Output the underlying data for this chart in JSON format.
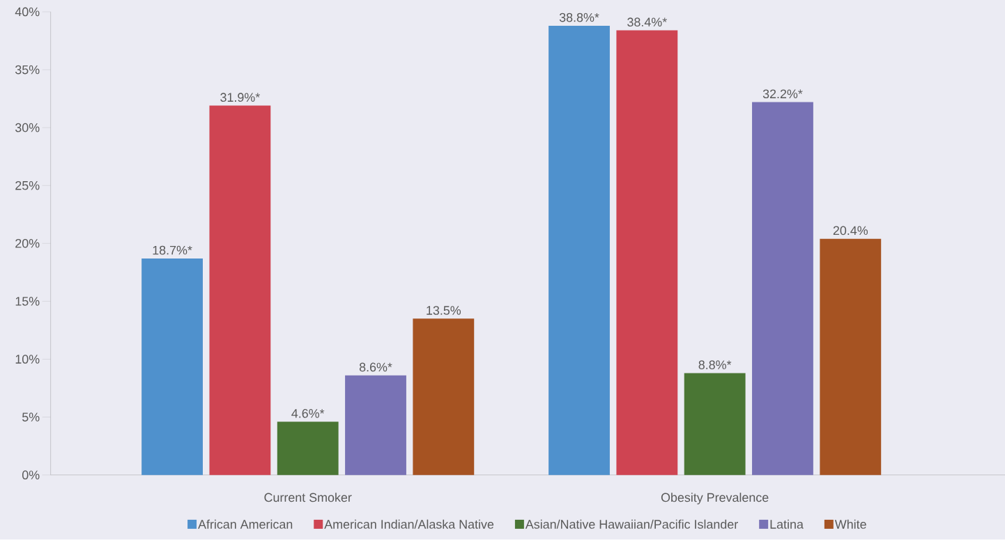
{
  "chart_data": {
    "type": "bar",
    "categories": [
      "Current Smoker",
      "Obesity Prevalence"
    ],
    "series": [
      {
        "name": "African American",
        "color": "#4f91cd",
        "values": [
          18.7,
          38.8
        ],
        "value_labels": [
          "18.7%*",
          "38.8%*"
        ]
      },
      {
        "name": "American Indian/Alaska Native",
        "color": "#cf4452",
        "values": [
          31.9,
          38.4
        ],
        "value_labels": [
          "31.9%*",
          "38.4%*"
        ]
      },
      {
        "name": "Asian/Native Hawaiian/Pacific Islander",
        "color": "#4a7634",
        "values": [
          4.6,
          8.8
        ],
        "value_labels": [
          "4.6%*",
          "8.8%*"
        ]
      },
      {
        "name": "Latina",
        "color": "#7872b5",
        "values": [
          8.6,
          32.2
        ],
        "value_labels": [
          "8.6%*",
          "32.2%*"
        ]
      },
      {
        "name": "White",
        "color": "#a65322",
        "values": [
          13.5,
          20.4
        ],
        "value_labels": [
          "13.5%",
          "20.4%"
        ]
      }
    ],
    "ylim": [
      0,
      40
    ],
    "yticks": [
      {
        "value": 0,
        "label": "0%"
      },
      {
        "value": 5,
        "label": "5%"
      },
      {
        "value": 10,
        "label": "10%"
      },
      {
        "value": 15,
        "label": "15%"
      },
      {
        "value": 20,
        "label": "20%"
      },
      {
        "value": 25,
        "label": "25%"
      },
      {
        "value": 30,
        "label": "30%"
      },
      {
        "value": 35,
        "label": "35%"
      },
      {
        "value": 40,
        "label": "40%"
      }
    ],
    "legend": "bottom",
    "grid": false
  }
}
